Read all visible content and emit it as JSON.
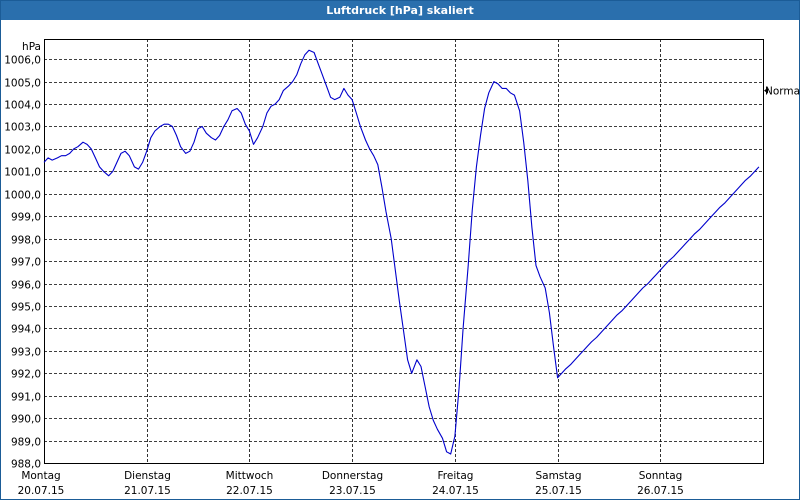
{
  "window": {
    "title": "Luftdruck [hPa] skaliert"
  },
  "chart_data": {
    "type": "line",
    "title": "Luftdruck [hPa] skaliert",
    "ylabel": "hPa",
    "ylim": [
      988,
      1006.9
    ],
    "yticks": [
      "1006,0",
      "1005,0",
      "1004,0",
      "1003,0",
      "1002,0",
      "1001,0",
      "1000,0",
      "999,0",
      "998,0",
      "997,0",
      "996,0",
      "995,0",
      "994,0",
      "993,0",
      "992,0",
      "991,0",
      "990,0",
      "989,0",
      "988,0"
    ],
    "ytick_values": [
      1006,
      1005,
      1004,
      1003,
      1002,
      1001,
      1000,
      999,
      998,
      997,
      996,
      995,
      994,
      993,
      992,
      991,
      990,
      989,
      988
    ],
    "xlim": [
      0,
      7
    ],
    "x_categories": [
      {
        "day": "Montag",
        "date": "20.07.15"
      },
      {
        "day": "Dienstag",
        "date": "21.07.15"
      },
      {
        "day": "Mittwoch",
        "date": "22.07.15"
      },
      {
        "day": "Donnerstag",
        "date": "23.07.15"
      },
      {
        "day": "Freitag",
        "date": "24.07.15"
      },
      {
        "day": "Samstag",
        "date": "25.07.15"
      },
      {
        "day": "Sonntag",
        "date": "26.07.15"
      }
    ],
    "reference_line": {
      "label": "Normal",
      "value": 1004.6
    },
    "grid": true,
    "line_color": "#0000cc",
    "series": [
      {
        "x": [
          0,
          0.04,
          0.08,
          0.13,
          0.17,
          0.21,
          0.25,
          0.29,
          0.33,
          0.38,
          0.42,
          0.46,
          0.5,
          0.54,
          0.58,
          0.63,
          0.67,
          0.71,
          0.75,
          0.79,
          0.83,
          0.88,
          0.92,
          0.96,
          1.0,
          1.04,
          1.08,
          1.13,
          1.17,
          1.21,
          1.25,
          1.29,
          1.33,
          1.38,
          1.42,
          1.46,
          1.5,
          1.54,
          1.58,
          1.63,
          1.67,
          1.71,
          1.75,
          1.79,
          1.83,
          1.88,
          1.92,
          1.96,
          2.0,
          2.04,
          2.08,
          2.13,
          2.17,
          2.21,
          2.25,
          2.29,
          2.33,
          2.38,
          2.42,
          2.46,
          2.5,
          2.54,
          2.58,
          2.63,
          2.67,
          2.71,
          2.75,
          2.79,
          2.83,
          2.88,
          2.92,
          2.96,
          3.0,
          3.04,
          3.08,
          3.13,
          3.17,
          3.21,
          3.25,
          3.29,
          3.33,
          3.38,
          3.42,
          3.46,
          3.5,
          3.54,
          3.58,
          3.63,
          3.67,
          3.71,
          3.75,
          3.79,
          3.83,
          3.88,
          3.92,
          3.96,
          4.0,
          4.04,
          4.08,
          4.13,
          4.17,
          4.21,
          4.25,
          4.29,
          4.33,
          4.38,
          4.42,
          4.46,
          4.5,
          4.54,
          4.58,
          4.63,
          4.67,
          4.71,
          4.75,
          4.79,
          4.83,
          4.88,
          4.92,
          4.96,
          5.0,
          5.04,
          5.08,
          5.13,
          5.17,
          5.21,
          5.25,
          5.29,
          5.33,
          5.38,
          5.42,
          5.46,
          5.5,
          5.54,
          5.58,
          5.63,
          5.67,
          5.71,
          5.75,
          5.79,
          5.83,
          5.88,
          5.92,
          5.96,
          6.0,
          6.04,
          6.08,
          6.13,
          6.17,
          6.21,
          6.25,
          6.29,
          6.33,
          6.38,
          6.42,
          6.46,
          6.5,
          6.54,
          6.58,
          6.63,
          6.67,
          6.71,
          6.75,
          6.79,
          6.83,
          6.88,
          6.92,
          6.96
        ],
        "y": [
          1001.4,
          1001.6,
          1001.5,
          1001.6,
          1001.7,
          1001.7,
          1001.8,
          1002.0,
          1002.1,
          1002.3,
          1002.2,
          1002.0,
          1001.6,
          1001.2,
          1001.0,
          1000.8,
          1001.0,
          1001.4,
          1001.8,
          1001.9,
          1001.7,
          1001.2,
          1001.1,
          1001.4,
          1001.9,
          1002.5,
          1002.8,
          1003.0,
          1003.1,
          1003.1,
          1003.0,
          1002.6,
          1002.1,
          1001.8,
          1001.9,
          1002.3,
          1002.9,
          1003.0,
          1002.7,
          1002.5,
          1002.4,
          1002.6,
          1003.0,
          1003.3,
          1003.7,
          1003.8,
          1003.6,
          1003.1,
          1002.8,
          1002.2,
          1002.5,
          1003.0,
          1003.6,
          1003.9,
          1004.0,
          1004.2,
          1004.6,
          1004.8,
          1005.0,
          1005.3,
          1005.8,
          1006.2,
          1006.4,
          1006.3,
          1005.8,
          1005.3,
          1004.8,
          1004.3,
          1004.2,
          1004.3,
          1004.7,
          1004.4,
          1004.2,
          1003.6,
          1003.0,
          1002.4,
          1002.0,
          1001.7,
          1001.3,
          1000.3,
          999.2,
          998.0,
          996.6,
          995.2,
          993.9,
          992.6,
          992.0,
          992.6,
          992.3,
          991.4,
          990.5,
          989.9,
          989.5,
          989.1,
          988.5,
          988.4,
          989.2,
          991.3,
          994.0,
          996.8,
          999.3,
          1001.2,
          1002.6,
          1003.8,
          1004.5,
          1005.0,
          1004.9,
          1004.7,
          1004.7,
          1004.5,
          1004.4,
          1003.7,
          1002.3,
          1000.6,
          998.5,
          996.8,
          996.3,
          995.8,
          994.7,
          993.2,
          991.8,
          992.0,
          992.2,
          992.4,
          992.6,
          992.8,
          993.0,
          993.2,
          993.4,
          993.6,
          993.8,
          994.0,
          994.2,
          994.4,
          994.6,
          994.8,
          995.0,
          995.2,
          995.4,
          995.6,
          995.8,
          996.0,
          996.2,
          996.4,
          996.6,
          996.8,
          997.0,
          997.2,
          997.4,
          997.6,
          997.8,
          998.0,
          998.2,
          998.4,
          998.6,
          998.8,
          999.0,
          999.2,
          999.4,
          999.6,
          999.8,
          1000.0,
          1000.2,
          1000.4,
          1000.6,
          1000.8,
          1001.0,
          1001.2
        ]
      }
    ]
  }
}
